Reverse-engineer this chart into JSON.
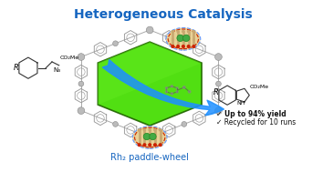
{
  "title": "Heterogeneous Catalysis",
  "title_color": "#1565C0",
  "title_fontsize": 10,
  "subtitle": "Rh₂ paddle-wheel",
  "subtitle_color": "#1565C0",
  "subtitle_fontsize": 7,
  "bg_color": "#ffffff",
  "hex_face_color": "#44dd00",
  "hex_top_color": "#88ee44",
  "hex_edge_color": "#226600",
  "arrow_color": "#1E90FF",
  "arrow_alpha": 0.85,
  "bullet_text": [
    "✓ Up to 94% yield",
    "✓ Recycled for 10 runs"
  ],
  "bullet_fontsize": 5.5,
  "bullet_color": "#111111",
  "cage_node_color": "#bbbbbb",
  "cage_bond_color": "#aaaaaa",
  "paddle_bg_color": "#e8d090",
  "paddle_border_color": "#6699ff",
  "paddle_red": "#cc2200",
  "paddle_green1": "#44aa44",
  "paddle_green2": "#228822",
  "paddle_tan": "#c8a870"
}
